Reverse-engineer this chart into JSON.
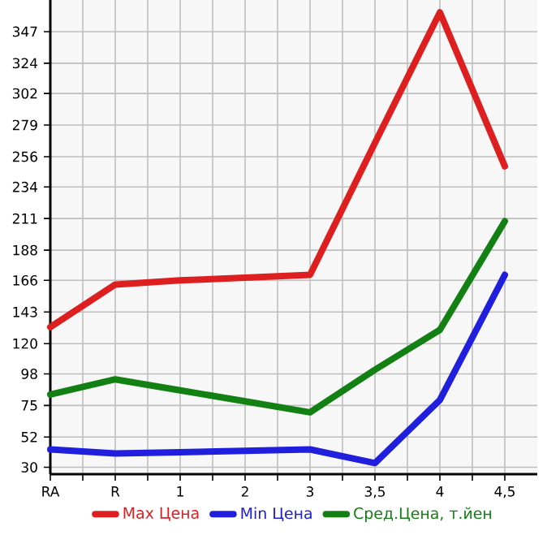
{
  "chart_data": {
    "type": "line",
    "categories": [
      "RA",
      "R",
      "1",
      "2",
      "3",
      "3,5",
      "4",
      "4,5"
    ],
    "series": [
      {
        "name": "Max Цена",
        "color": "#dd1f1f",
        "values": [
          132,
          163,
          166,
          168,
          170,
          266,
          361,
          249
        ]
      },
      {
        "name": "Min Цена",
        "color": "#1f1fdd",
        "values": [
          43,
          40,
          41,
          42,
          43,
          33,
          79,
          170
        ]
      },
      {
        "name": "Сред.Цена, т.йен",
        "color": "#128012",
        "values": [
          83,
          94,
          86,
          78,
          70,
          101,
          130,
          209
        ]
      }
    ],
    "ylim": [
      25,
      370
    ],
    "yticks": [
      30,
      52,
      75,
      98,
      120,
      143,
      166,
      188,
      211,
      234,
      256,
      279,
      302,
      324,
      347
    ],
    "grid": true,
    "legend": "bottom",
    "marker": "none",
    "line_style": "solid"
  }
}
